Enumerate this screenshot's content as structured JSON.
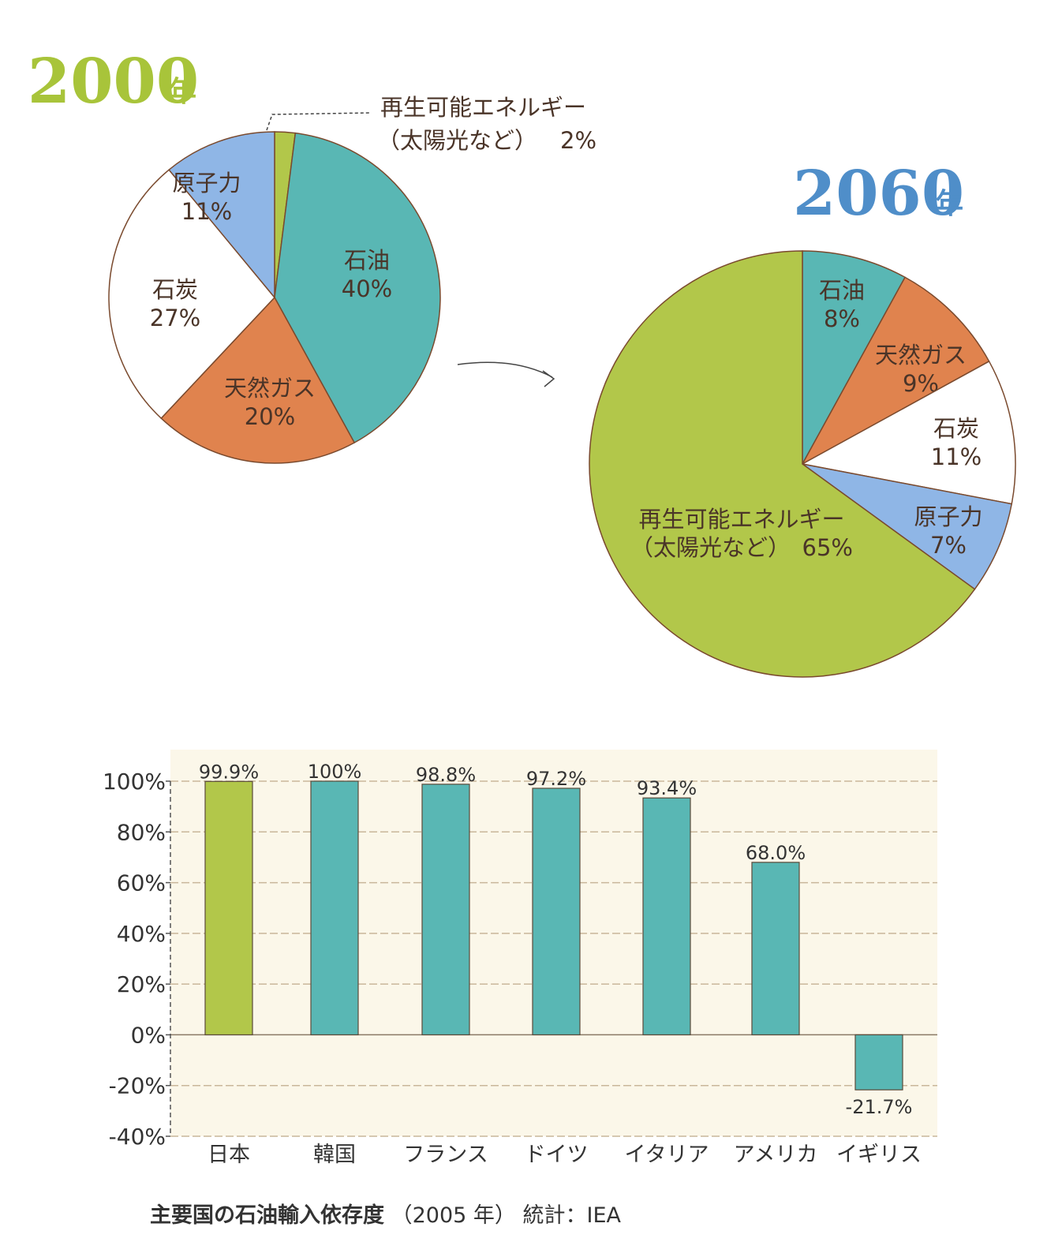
{
  "colors": {
    "green": "#b2c74a",
    "teal": "#59b7b4",
    "orange": "#e0834e",
    "white": "#ffffff",
    "blue": "#8fb6e6",
    "outline": "#7a4a2e",
    "year_green": "#a8c43a",
    "year_blue": "#4f8ec9",
    "plot_bg": "#fbf7e9",
    "grid": "#c9b79a"
  },
  "chart_data": [
    {
      "type": "pie",
      "title": "2000",
      "title_suffix": "年",
      "slices": [
        {
          "label": "再生可能エネルギー",
          "label2": "（太陽光など）",
          "value": 2,
          "value_text": "2%",
          "color": "#b2c74a"
        },
        {
          "label": "石油",
          "value": 40,
          "value_text": "40%",
          "color": "#59b7b4"
        },
        {
          "label": "天然ガス",
          "value": 20,
          "value_text": "20%",
          "color": "#e0834e"
        },
        {
          "label": "石炭",
          "value": 27,
          "value_text": "27%",
          "color": "#ffffff"
        },
        {
          "label": "原子力",
          "value": 11,
          "value_text": "11%",
          "color": "#8fb6e6"
        }
      ]
    },
    {
      "type": "pie",
      "title": "2060",
      "title_suffix": "年",
      "slices": [
        {
          "label": "石油",
          "value": 8,
          "value_text": "8%",
          "color": "#59b7b4"
        },
        {
          "label": "天然ガス",
          "value": 9,
          "value_text": "9%",
          "color": "#e0834e"
        },
        {
          "label": "石炭",
          "value": 11,
          "value_text": "11%",
          "color": "#ffffff"
        },
        {
          "label": "原子力",
          "value": 7,
          "value_text": "7%",
          "color": "#8fb6e6"
        },
        {
          "label": "再生可能エネルギー",
          "label2": "（太陽光など）",
          "value": 65,
          "value_text": "65%",
          "color": "#b2c74a"
        }
      ]
    },
    {
      "type": "bar",
      "categories": [
        "日本",
        "韓国",
        "フランス",
        "ドイツ",
        "イタリア",
        "アメリカ",
        "イギリス"
      ],
      "values": [
        99.9,
        100,
        98.8,
        97.2,
        93.4,
        68.0,
        -21.7
      ],
      "value_labels": [
        "99.9%",
        "100%",
        "98.8%",
        "97.2%",
        "93.4%",
        "68.0%",
        "-21.7%"
      ],
      "bar_colors": [
        "#b2c74a",
        "#59b7b4",
        "#59b7b4",
        "#59b7b4",
        "#59b7b4",
        "#59b7b4",
        "#59b7b4"
      ],
      "ylim": [
        -40,
        100
      ],
      "yticks": [
        100,
        80,
        60,
        40,
        20,
        0,
        -20,
        -40
      ],
      "ytick_labels": [
        "100%",
        "80%",
        "60%",
        "40%",
        "20%",
        "0%",
        "-20%",
        "-40%"
      ],
      "grid": true,
      "caption": {
        "title": "主要国の石油輸入依存度",
        "year": "（2005 年）",
        "source": "統計：IEA"
      }
    }
  ]
}
